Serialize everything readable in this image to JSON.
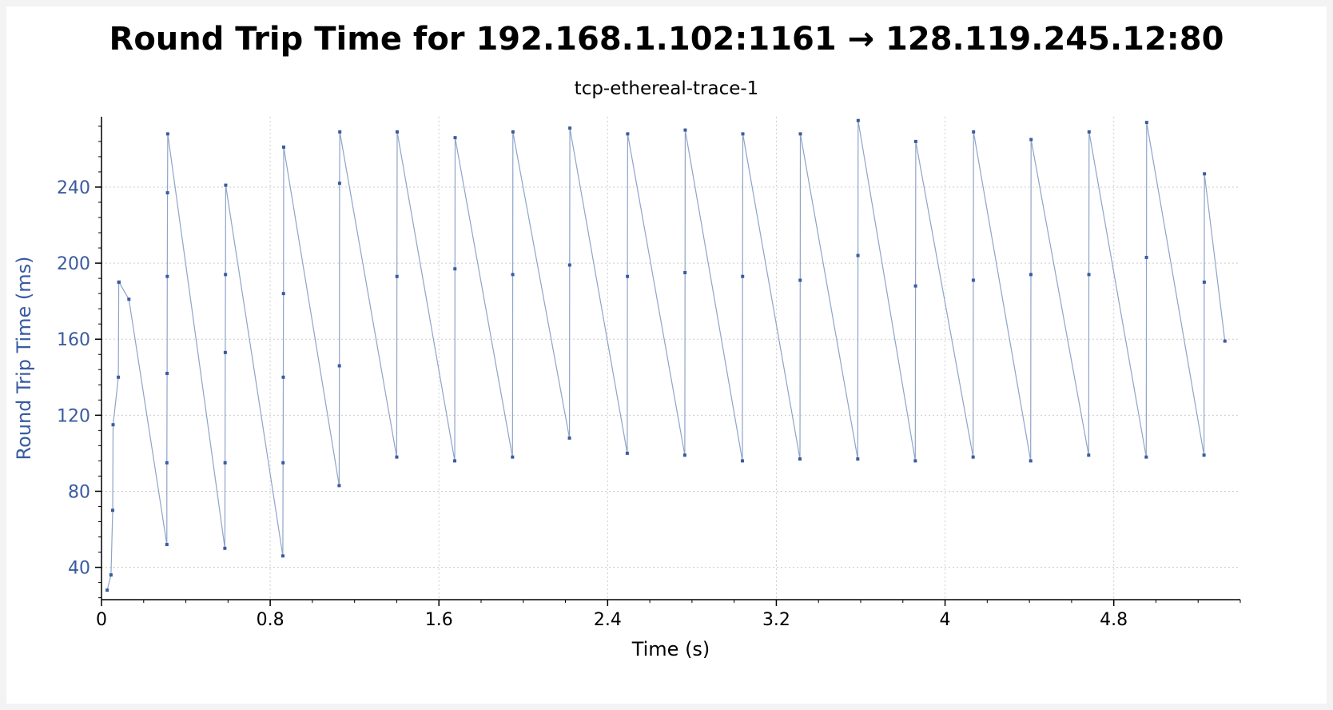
{
  "colors": {
    "series": "#3a5ba0",
    "line": "#8ea4c8",
    "grid": "#cccccc",
    "ylabel": "#3a5ba0",
    "axis": "#000000",
    "background": "#ffffff"
  },
  "chart_data": {
    "type": "line",
    "title": "Round Trip Time for 192.168.1.102:1161 → 128.119.245.12:80",
    "subtitle": "tcp-ethereal-trace-1",
    "xlabel": "Time (s)",
    "ylabel": "Round Trip Time (ms)",
    "xlim": [
      0,
      5.4
    ],
    "ylim": [
      23,
      277
    ],
    "xticks": [
      0,
      0.8,
      1.6,
      2.4,
      3.2,
      4,
      4.8
    ],
    "xtick_labels": [
      "0",
      "0.8",
      "1.6",
      "2.4",
      "3.2",
      "4",
      "4.8"
    ],
    "yticks": [
      40,
      80,
      120,
      160,
      200,
      240
    ],
    "ytick_labels": [
      "40",
      "80",
      "120",
      "160",
      "200",
      "240"
    ],
    "grid": true,
    "series": [
      {
        "markers": true,
        "x": [
          0.027,
          0.045,
          0.053,
          0.055,
          0.08,
          0.082,
          0.083,
          0.13,
          0.31,
          0.31,
          0.311,
          0.312,
          0.313,
          0.314,
          0.585,
          0.586,
          0.587,
          0.588,
          0.589,
          0.86,
          0.861,
          0.862,
          0.863,
          0.864,
          1.127,
          1.128,
          1.129,
          1.13,
          1.4,
          1.401,
          1.402,
          1.675,
          1.676,
          1.677,
          1.949,
          1.95,
          1.951,
          2.219,
          2.22,
          2.221,
          2.493,
          2.494,
          2.495,
          2.766,
          2.767,
          2.768,
          3.039,
          3.04,
          3.041,
          3.312,
          3.313,
          3.314,
          3.586,
          3.587,
          3.588,
          3.859,
          3.86,
          3.861,
          4.133,
          4.134,
          4.135,
          4.406,
          4.407,
          4.408,
          4.681,
          4.682,
          4.683,
          4.954,
          4.955,
          4.956,
          5.228,
          5.229,
          5.23,
          5.327
        ],
        "y": [
          28,
          36,
          70,
          115,
          140,
          190,
          190,
          181,
          52,
          95,
          142,
          193,
          237,
          268,
          50,
          95,
          153,
          194,
          241,
          46,
          95,
          140,
          184,
          261,
          83,
          146,
          242,
          269,
          98,
          193,
          269,
          96,
          197,
          266,
          98,
          194,
          269,
          108,
          199,
          271,
          100,
          193,
          268,
          99,
          195,
          270,
          96,
          193,
          268,
          97,
          191,
          268,
          97,
          204,
          275,
          96,
          188,
          264,
          98,
          191,
          269,
          96,
          194,
          265,
          99,
          194,
          269,
          98,
          203,
          274,
          99,
          190,
          247,
          159
        ]
      }
    ]
  }
}
